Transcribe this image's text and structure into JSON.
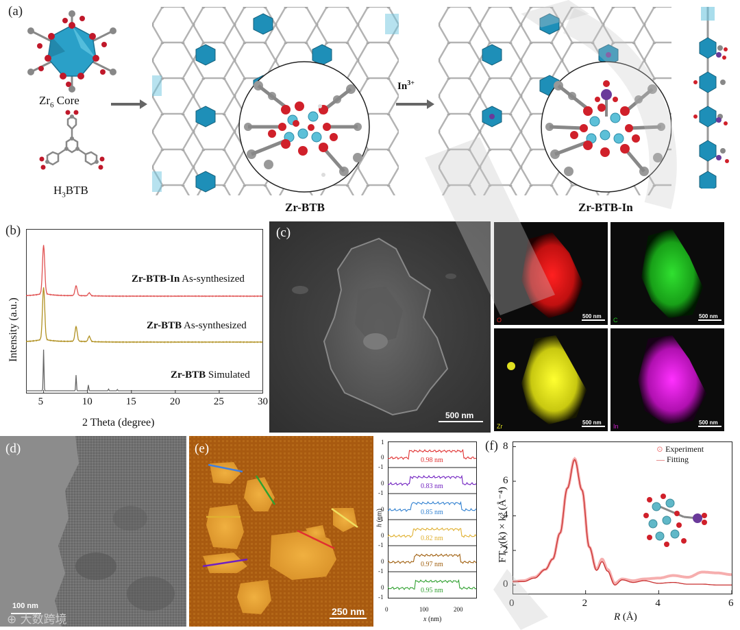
{
  "panel_a": {
    "label": "(a)",
    "zr6_core": "Zr",
    "zr6_sub": "6",
    "zr6_core_suffix": " Core",
    "h3btb_prefix": "H",
    "h3btb_sub": "3",
    "h3btb_suffix": "BTB",
    "arrow_label": "In",
    "arrow_sup": "3+",
    "zrbtb": "Zr-BTB",
    "zrbtbin": "Zr-BTB-In"
  },
  "panel_b": {
    "label": "(b)",
    "ylabel": "Intensity (a.u.)",
    "xlabel": "2 Theta (degree)",
    "traces": [
      {
        "bold": "Zr-BTB-In",
        "rest": " As-synthesized",
        "color": "#e05050"
      },
      {
        "bold": "Zr-BTB",
        "rest": " As-synthesized",
        "color": "#b09020"
      },
      {
        "bold": "Zr-BTB",
        "rest": " Simulated",
        "color": "#666666"
      }
    ],
    "xticks": [
      "5",
      "10",
      "15",
      "20",
      "25",
      "30"
    ]
  },
  "panel_c": {
    "label": "(c)",
    "scalebar": "500 nm",
    "maps": [
      {
        "tag": "O",
        "scale": "500 nm",
        "color": "#e02020"
      },
      {
        "tag": "C",
        "scale": "500 nm",
        "color": "#20c020"
      },
      {
        "tag": "Zr",
        "scale": "500 nm",
        "color": "#e0e020"
      },
      {
        "tag": "In",
        "scale": "500 nm",
        "color": "#d020d0"
      }
    ]
  },
  "panel_d": {
    "label": "(d)",
    "scalebar": "100 nm",
    "watermark": "大数跨境"
  },
  "panel_e": {
    "label": "(e)",
    "scalebar": "250 nm",
    "profiles": [
      {
        "value": "0.98 nm",
        "color": "#e03030"
      },
      {
        "value": "0.83 nm",
        "color": "#7020c0"
      },
      {
        "value": "0.85 nm",
        "color": "#3080d0"
      },
      {
        "value": "0.82 nm",
        "color": "#e0b030"
      },
      {
        "value": "0.97 nm",
        "color": "#a06010"
      },
      {
        "value": "0.95 nm",
        "color": "#30a030"
      }
    ],
    "ylabel_h": "h",
    "ylabel_unit": " (nm)",
    "xlabel_x": "x",
    "xlabel_unit": " (nm)",
    "xticks": [
      "0",
      "100",
      "200"
    ],
    "yticks": [
      "1",
      "0",
      "-1",
      "0",
      "-1",
      "0",
      "-1",
      "0",
      "-1",
      "0",
      "-1",
      "0",
      "-1",
      "0",
      "-1"
    ]
  },
  "panel_f": {
    "label": "(f)",
    "legend": [
      "Experiment",
      "Fitting"
    ],
    "xlabel_r": "R",
    "xlabel_unit": " (Å)",
    "ylabel": "FT χ(k) × k³ (Å⁻⁴)",
    "xticks": [
      "0",
      "2",
      "4",
      "6"
    ],
    "yticks": [
      "0",
      "2",
      "4",
      "6",
      "8"
    ]
  },
  "chart_data": [
    {
      "type": "line",
      "xlabel": "2 Theta (degree)",
      "ylabel": "Intensity (a.u.)",
      "xlim": [
        3,
        30
      ],
      "series": [
        {
          "name": "Zr-BTB-In As-synthesized",
          "peaks": [
            [
              5.0,
              1.0
            ],
            [
              8.7,
              0.2
            ],
            [
              10.2,
              0.06
            ]
          ]
        },
        {
          "name": "Zr-BTB As-synthesized",
          "peaks": [
            [
              5.0,
              1.0
            ],
            [
              8.7,
              0.28
            ],
            [
              10.2,
              0.1
            ]
          ]
        },
        {
          "name": "Zr-BTB Simulated",
          "peaks": [
            [
              5.0,
              1.0
            ],
            [
              8.7,
              0.38
            ],
            [
              10.1,
              0.14
            ],
            [
              12.4,
              0.04
            ],
            [
              13.4,
              0.03
            ]
          ]
        }
      ]
    },
    {
      "type": "line",
      "xlabel": "R (Å)",
      "ylabel": "FT χ(k) × k³ (Å⁻⁴)",
      "xlim": [
        0,
        6
      ],
      "ylim": [
        -0.5,
        8.3
      ],
      "series": [
        {
          "name": "Experiment",
          "x": [
            0,
            0.3,
            0.6,
            0.9,
            1.1,
            1.3,
            1.5,
            1.7,
            1.9,
            2.1,
            2.3,
            2.45,
            2.6,
            2.8,
            3.0,
            3.3,
            3.6,
            4.0,
            4.4,
            4.8,
            5.2,
            5.6,
            6.0
          ],
          "y": [
            0.2,
            0.25,
            0.45,
            0.9,
            1.5,
            3.0,
            5.6,
            7.3,
            5.5,
            2.2,
            0.9,
            1.5,
            0.9,
            0.1,
            0.35,
            0.25,
            0.35,
            0.4,
            0.55,
            0.45,
            0.75,
            0.7,
            0.6
          ]
        },
        {
          "name": "Fitting",
          "x": [
            0,
            0.3,
            0.6,
            0.9,
            1.1,
            1.3,
            1.5,
            1.7,
            1.9,
            2.1,
            2.3,
            2.45,
            2.6,
            2.8,
            3.0,
            3.3,
            3.6,
            4.0,
            4.4,
            4.8,
            5.2,
            5.6,
            6.0
          ],
          "y": [
            0.2,
            0.2,
            0.4,
            0.9,
            1.5,
            3.0,
            5.6,
            7.25,
            5.5,
            2.2,
            0.85,
            1.35,
            0.8,
            0.0,
            0.3,
            0.15,
            0.25,
            0.1,
            0.15,
            0.05,
            0.05,
            0.0,
            0.0
          ]
        }
      ]
    }
  ]
}
